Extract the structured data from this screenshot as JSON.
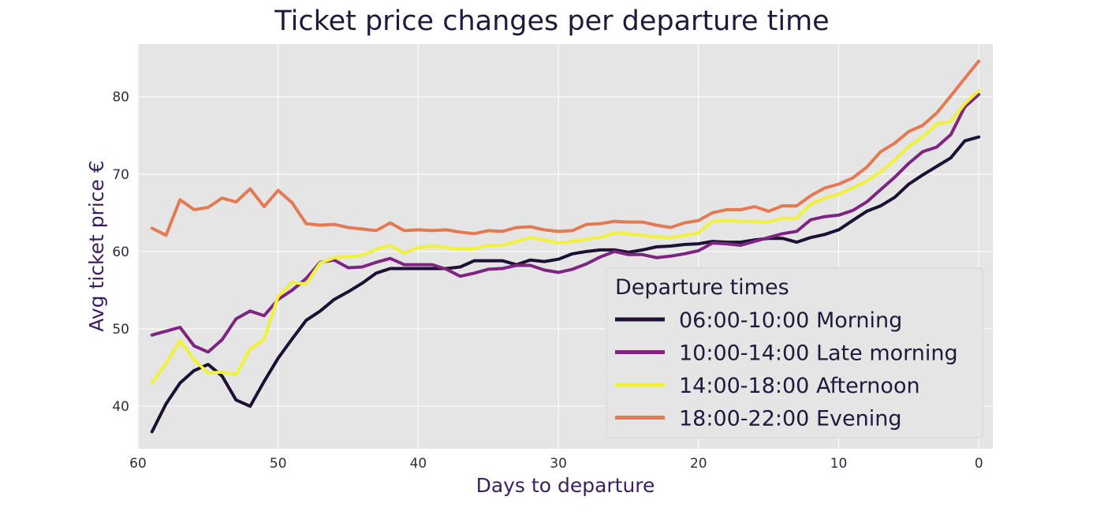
{
  "chart_data": {
    "type": "line",
    "title": "Ticket price changes per departure time",
    "xlabel": "Days to departure",
    "ylabel": "Avg ticket price €",
    "xlim": [
      60,
      -1
    ],
    "ylim": [
      34.5,
      86.8
    ],
    "x_ticks": [
      60,
      50,
      40,
      30,
      20,
      10,
      0
    ],
    "y_ticks": [
      40,
      50,
      60,
      70,
      80
    ],
    "grid": true,
    "legend": {
      "title": "Departure times",
      "placement": "lower-right"
    },
    "x": [
      59,
      58,
      57,
      56,
      55,
      54,
      53,
      52,
      51,
      50,
      49,
      48,
      47,
      46,
      45,
      44,
      43,
      42,
      41,
      40,
      39,
      38,
      37,
      36,
      35,
      34,
      33,
      32,
      31,
      30,
      29,
      28,
      27,
      26,
      25,
      24,
      23,
      22,
      21,
      20,
      19,
      18,
      17,
      16,
      15,
      14,
      13,
      12,
      11,
      10,
      9,
      8,
      7,
      6,
      5,
      4,
      3,
      2,
      1,
      0
    ],
    "series": [
      {
        "name": "06:00-10:00 Morning",
        "color": "#1c1033",
        "values": [
          36.7,
          40.3,
          43.0,
          44.6,
          45.4,
          43.9,
          40.8,
          40.0,
          43.2,
          46.2,
          48.7,
          51.1,
          52.3,
          53.8,
          54.8,
          55.9,
          57.2,
          57.8,
          57.8,
          57.8,
          57.8,
          57.8,
          58.0,
          58.8,
          58.8,
          58.8,
          58.3,
          58.9,
          58.7,
          59.0,
          59.7,
          60.0,
          60.2,
          60.2,
          59.9,
          60.2,
          60.6,
          60.7,
          60.9,
          61.0,
          61.3,
          61.2,
          61.2,
          61.5,
          61.7,
          61.7,
          61.2,
          61.8,
          62.2,
          62.8,
          64.0,
          65.2,
          65.9,
          67.0,
          68.7,
          69.9,
          71.0,
          72.1,
          74.3,
          74.8
        ]
      },
      {
        "name": "10:00-14:00 Late morning",
        "color": "#7e2582",
        "values": [
          49.2,
          49.7,
          50.2,
          47.8,
          47.0,
          48.6,
          51.3,
          52.3,
          51.7,
          53.8,
          55.0,
          56.5,
          58.6,
          58.9,
          57.9,
          58.0,
          58.6,
          59.1,
          58.3,
          58.3,
          58.3,
          57.7,
          56.8,
          57.2,
          57.7,
          57.8,
          58.2,
          58.2,
          57.6,
          57.3,
          57.7,
          58.4,
          59.3,
          60.0,
          59.6,
          59.6,
          59.2,
          59.4,
          59.7,
          60.1,
          61.1,
          61.0,
          60.8,
          61.3,
          61.8,
          62.3,
          62.6,
          64.1,
          64.5,
          64.7,
          65.3,
          66.4,
          68.0,
          69.6,
          71.4,
          72.9,
          73.5,
          75.1,
          78.7,
          80.3
        ]
      },
      {
        "name": "14:00-18:00 Afternoon",
        "color": "#f0f13a",
        "values": [
          43.0,
          45.5,
          48.5,
          46.0,
          44.3,
          44.4,
          44.1,
          47.4,
          48.6,
          54.2,
          56.0,
          55.8,
          58.5,
          59.2,
          59.3,
          59.5,
          60.3,
          60.8,
          59.8,
          60.5,
          60.7,
          60.5,
          60.3,
          60.4,
          60.8,
          60.8,
          61.3,
          61.8,
          61.5,
          61.1,
          61.3,
          61.6,
          61.8,
          62.4,
          62.3,
          62.1,
          61.9,
          61.8,
          62.1,
          62.4,
          63.9,
          64.0,
          63.9,
          63.9,
          63.8,
          64.3,
          64.3,
          66.1,
          66.9,
          67.4,
          68.2,
          69.1,
          70.3,
          71.8,
          73.6,
          74.8,
          76.5,
          76.8,
          79.1,
          80.8
        ]
      },
      {
        "name": "18:00-22:00 Evening",
        "color": "#e47a53",
        "values": [
          63.0,
          62.1,
          66.7,
          65.4,
          65.7,
          66.9,
          66.4,
          68.1,
          65.8,
          67.9,
          66.3,
          63.6,
          63.4,
          63.5,
          63.1,
          62.9,
          62.7,
          63.7,
          62.7,
          62.8,
          62.7,
          62.8,
          62.5,
          62.3,
          62.7,
          62.6,
          63.1,
          63.2,
          62.8,
          62.6,
          62.7,
          63.5,
          63.6,
          63.9,
          63.8,
          63.8,
          63.4,
          63.1,
          63.7,
          64.0,
          65.0,
          65.4,
          65.4,
          65.8,
          65.2,
          65.9,
          65.9,
          67.2,
          68.2,
          68.7,
          69.5,
          70.9,
          72.9,
          74.0,
          75.5,
          76.3,
          77.9,
          80.1,
          82.4,
          84.6
        ]
      }
    ]
  }
}
